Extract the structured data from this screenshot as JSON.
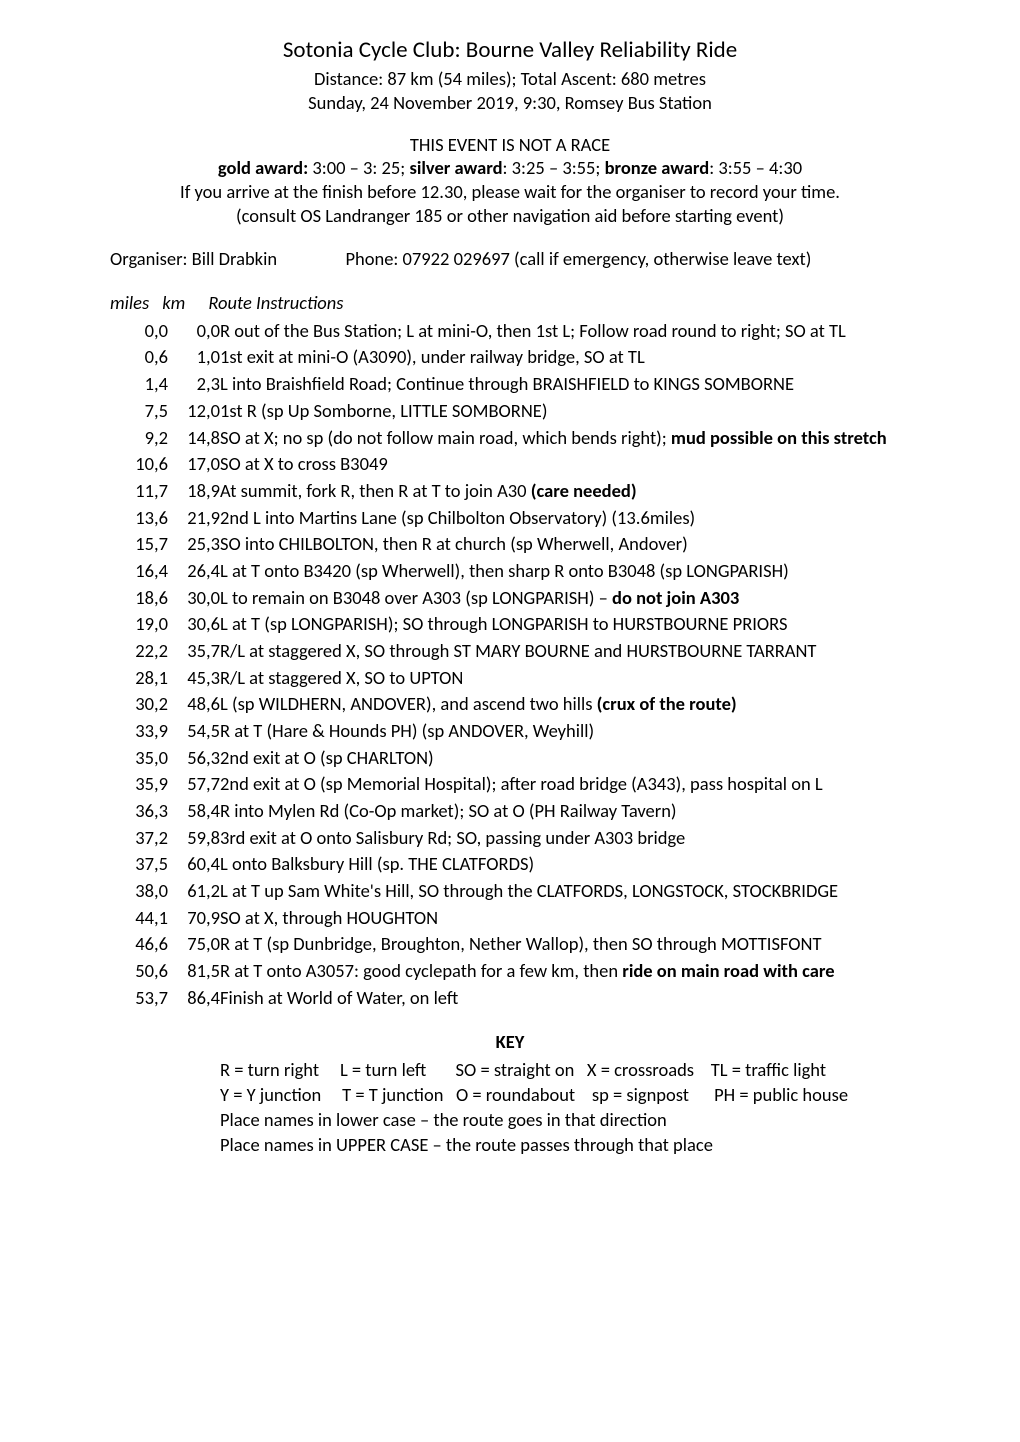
{
  "colors": {
    "text": "#000000",
    "background": "#ffffff"
  },
  "fonts": {
    "body_pt": 14,
    "title_pt": 17,
    "family": "Calibri"
  },
  "header": {
    "title": "Sotonia Cycle Club: Bourne Valley Reliability Ride",
    "distance_line": "Distance: 87 km (54 miles); Total Ascent: 680 metres",
    "date_line": "Sunday, 24 November 2019, 9:30, Romsey Bus Station",
    "not_a_race": "THIS EVENT IS NOT A RACE",
    "awards": {
      "gold_label": "gold award:",
      "gold_time": "3:00 – 3: 25;",
      "silver_label": "silver award",
      "silver_time": ": 3:25 – 3:55;",
      "bronze_label": "bronze award",
      "bronze_time": ": 3:55 – 4:30"
    },
    "note1": "If you arrive at the finish before 12.30, please wait for the organiser to record your time.",
    "note2": "(consult OS Landranger 185 or other navigation aid before starting event)",
    "organiser_label": "Organiser: Bill Drabkin",
    "organiser_phone": "Phone: 07922 029697 (call if emergency, otherwise leave text)"
  },
  "route": {
    "head_miles": "miles",
    "head_km": "km",
    "head_instr": "Route Instructions",
    "rows": [
      {
        "miles": "0,0",
        "km": "0,0",
        "instr": "R out of the Bus Station; L at mini-O, then 1st L; Follow road round to right; SO at TL"
      },
      {
        "miles": "0,6",
        "km": "1,0",
        "instr": "1st exit at mini-O (A3090), under railway bridge, SO at TL"
      },
      {
        "miles": "1,4",
        "km": "2,3",
        "instr": "L into Braishfield Road; Continue through BRAISHFIELD to KINGS SOMBORNE"
      },
      {
        "miles": "7,5",
        "km": "12,0",
        "instr": "1st R (sp Up Somborne, LITTLE SOMBORNE)"
      },
      {
        "miles": "9,2",
        "km": "14,8",
        "instr": "SO at X; no sp (do not follow main road, which bends right); ",
        "bold_tail": "mud possible on this stretch"
      },
      {
        "miles": "10,6",
        "km": "17,0",
        "instr": "SO at X to cross B3049"
      },
      {
        "miles": "11,7",
        "km": "18,9",
        "instr": "At summit, fork R, then R at T to join A30 ",
        "bold_tail": "(care needed)"
      },
      {
        "miles": "13,6",
        "km": "21,9",
        "instr": "2nd L into Martins Lane (sp Chilbolton Observatory) (13.6miles)"
      },
      {
        "miles": "15,7",
        "km": "25,3",
        "instr": "SO into CHILBOLTON, then R at church (sp Wherwell, Andover)"
      },
      {
        "miles": "16,4",
        "km": "26,4",
        "instr": "L at T onto B3420 (sp Wherwell), then sharp R onto B3048 (sp LONGPARISH)"
      },
      {
        "miles": "18,6",
        "km": "30,0",
        "instr": "L to remain on B3048 over A303 (sp LONGPARISH) – ",
        "bold_tail": "do not join A303"
      },
      {
        "miles": "19,0",
        "km": "30,6",
        "instr": "L at T (sp LONGPARISH); SO through LONGPARISH to HURSTBOURNE PRIORS"
      },
      {
        "miles": "22,2",
        "km": "35,7",
        "instr": "R/L at staggered X, SO through ST MARY BOURNE and HURSTBOURNE TARRANT"
      },
      {
        "miles": "28,1",
        "km": "45,3",
        "instr": "R/L at staggered X, SO to UPTON"
      },
      {
        "miles": "30,2",
        "km": "48,6",
        "instr": "L (sp WILDHERN, ANDOVER), and ascend two hills ",
        "bold_tail": "(crux of the route)"
      },
      {
        "miles": "33,9",
        "km": "54,5",
        "instr": "R at T (Hare & Hounds PH) (sp ANDOVER, Weyhill)"
      },
      {
        "miles": "35,0",
        "km": "56,3",
        "instr": "2nd exit at O (sp CHARLTON)"
      },
      {
        "miles": "35,9",
        "km": "57,7",
        "instr": "2nd exit at O (sp Memorial Hospital); after road bridge (A343), pass hospital on L"
      },
      {
        "miles": "36,3",
        "km": "58,4",
        "instr": "R into Mylen Rd (Co-Op market); SO at O (PH Railway Tavern)"
      },
      {
        "miles": "37,2",
        "km": "59,8",
        "instr": "3rd exit at O onto Salisbury Rd; SO, passing under A303 bridge"
      },
      {
        "miles": "37,5",
        "km": "60,4",
        "instr": "L onto Balksbury Hill (sp. THE CLATFORDS)"
      },
      {
        "miles": "38,0",
        "km": "61,2",
        "instr": "L at T up Sam White's Hill, SO through the CLATFORDS, LONGSTOCK, STOCKBRIDGE"
      },
      {
        "miles": "44,1",
        "km": "70,9",
        "instr": "SO at X, through HOUGHTON"
      },
      {
        "miles": "46,6",
        "km": "75,0",
        "instr": "R at T (sp Dunbridge, Broughton, Nether Wallop), then SO through MOTTISFONT"
      },
      {
        "miles": "50,6",
        "km": "81,5",
        "instr": "R at T onto A3057: good cyclepath for a few km, then ",
        "bold_tail": "ride on main road with care"
      },
      {
        "miles": "53,7",
        "km": "86,4",
        "instr": "Finish at World of Water, on left"
      }
    ]
  },
  "key": {
    "heading": "KEY",
    "line1": "R = turn right     L = turn left       SO = straight on   X = crossroads    TL = traffic light",
    "line2": "Y = Y junction     T = T junction   O = roundabout    sp = signpost      PH = public house",
    "line3": "Place names in lower case – the route goes in that direction",
    "line4": "Place names in UPPER CASE – the route passes through that place"
  }
}
